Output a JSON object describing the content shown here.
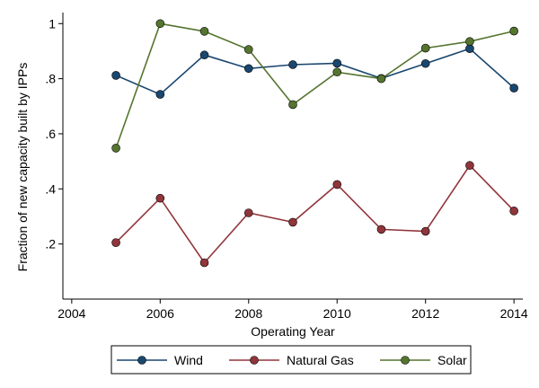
{
  "chart_data": {
    "type": "line",
    "xlabel": "Operating Year",
    "ylabel": "Fraction of new capacity built by IPPs",
    "xlim": [
      2003.8,
      2014.2
    ],
    "ylim": [
      0.0,
      1.04
    ],
    "x_ticks": [
      2004,
      2006,
      2008,
      2010,
      2012,
      2014
    ],
    "y_ticks": [
      0.2,
      0.4,
      0.6,
      0.8,
      1.0
    ],
    "x_tick_labels": [
      "2004",
      "2006",
      "2008",
      "2010",
      "2012",
      "2014"
    ],
    "y_tick_labels": [
      ".2",
      ".4",
      ".6",
      ".8",
      "1"
    ],
    "legend_position": "bottom",
    "grid": false,
    "x": [
      2005,
      2006,
      2007,
      2008,
      2009,
      2010,
      2011,
      2012,
      2013,
      2014
    ],
    "series": [
      {
        "name": "Wind",
        "color": "#1a476f",
        "values": [
          0.812,
          0.743,
          0.886,
          0.837,
          0.851,
          0.856,
          0.801,
          0.855,
          0.909,
          0.766
        ]
      },
      {
        "name": "Natural Gas",
        "color": "#90353b",
        "values": [
          0.205,
          0.366,
          0.132,
          0.313,
          0.279,
          0.416,
          0.253,
          0.246,
          0.485,
          0.32
        ]
      },
      {
        "name": "Solar",
        "color": "#55752f",
        "values": [
          0.548,
          1.0,
          0.972,
          0.906,
          0.706,
          0.824,
          0.8,
          0.911,
          0.935,
          0.973
        ]
      }
    ]
  }
}
